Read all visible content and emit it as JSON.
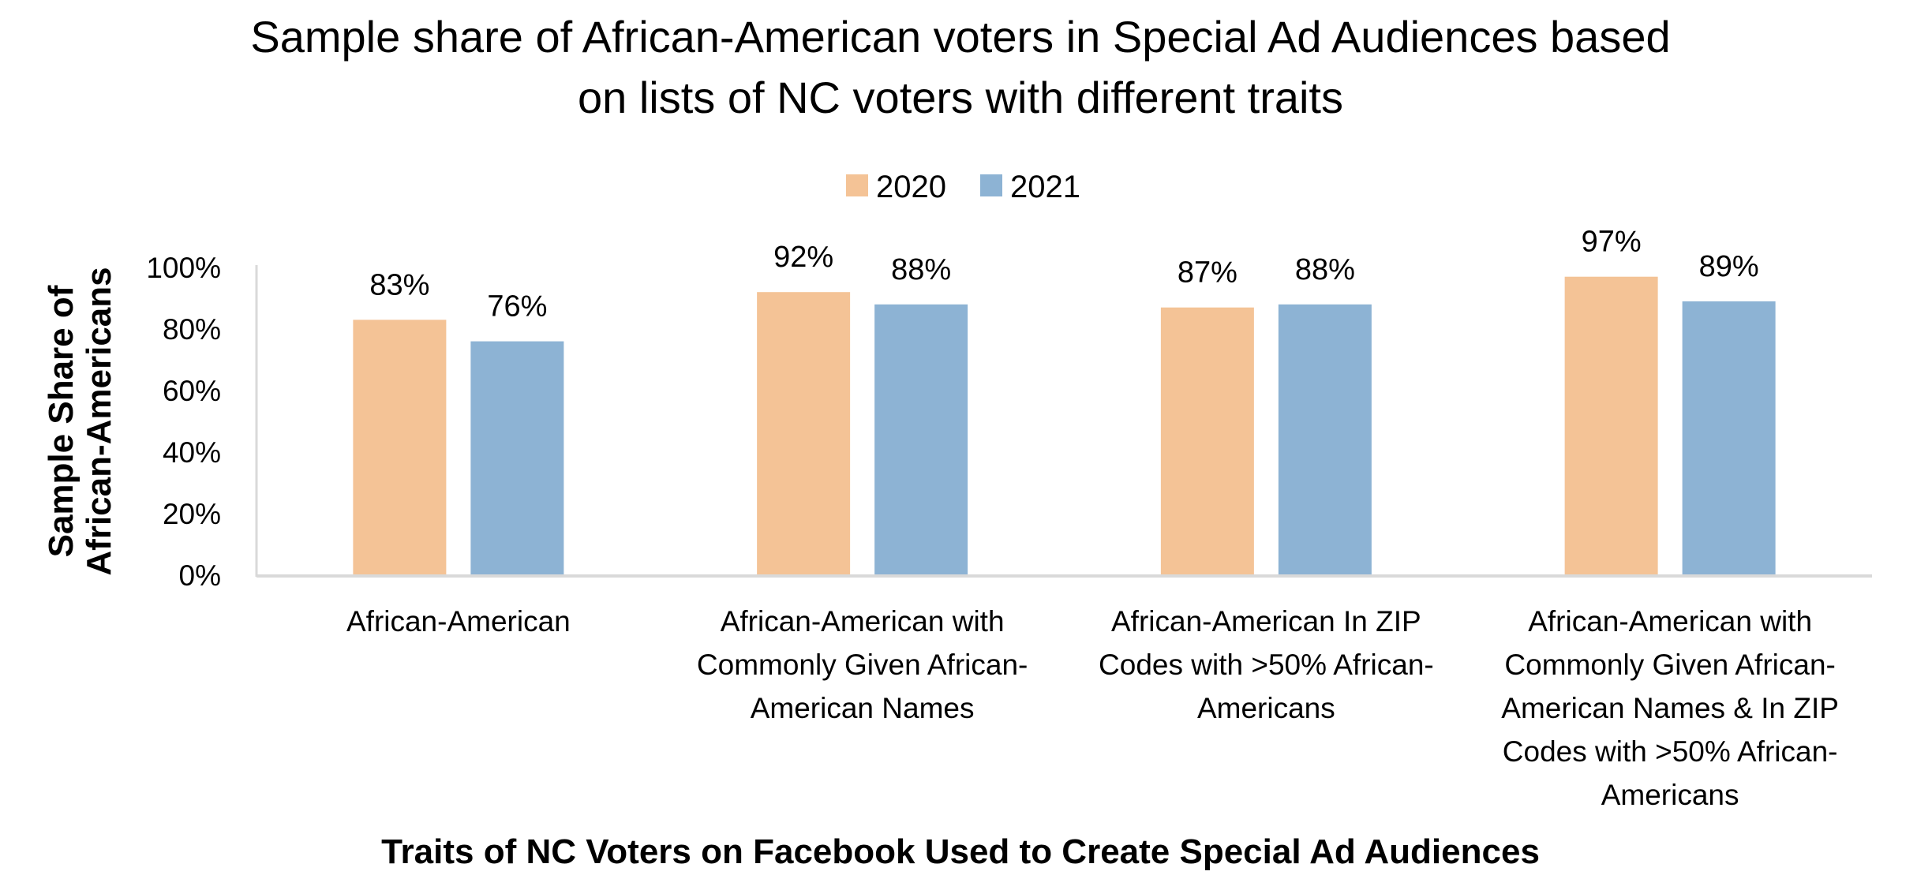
{
  "chart_data": {
    "type": "bar",
    "title": "Sample share of African-American voters in Special Ad Audiences based on lists of NC voters with different traits",
    "title_lines": [
      "Sample share of African-American voters in Special Ad Audiences based",
      "on lists of NC voters with different traits"
    ],
    "xlabel": "Traits of NC Voters on Facebook Used to Create Special Ad Audiences",
    "ylabel": "Sample Share of African-Americans",
    "ylabel_lines": [
      "Sample Share of",
      "African-Americans"
    ],
    "ylim": [
      0,
      100
    ],
    "yticks": [
      "0%",
      "20%",
      "40%",
      "60%",
      "80%",
      "100%"
    ],
    "grid": false,
    "legend_position": "top",
    "categories": [
      "African-American",
      "African-American with Commonly Given African-American Names",
      "African-American In ZIP Codes with >50% African-Americans",
      "African-American with Commonly Given African-American Names & In ZIP Codes with >50% African-Americans"
    ],
    "category_lines": [
      [
        "African-American"
      ],
      [
        "African-American with",
        "Commonly Given African-",
        "American Names"
      ],
      [
        "African-American In ZIP",
        "Codes with >50% African-",
        "Americans"
      ],
      [
        "African-American with",
        "Commonly Given African-",
        "American Names & In ZIP",
        "Codes with >50% African-",
        "Americans"
      ]
    ],
    "series": [
      {
        "name": "2020",
        "color": "#F4C396",
        "values": [
          83,
          92,
          87,
          97
        ],
        "labels": [
          "83%",
          "92%",
          "87%",
          "97%"
        ]
      },
      {
        "name": "2021",
        "color": "#8DB3D4",
        "values": [
          76,
          88,
          88,
          89
        ],
        "labels": [
          "76%",
          "88%",
          "88%",
          "89%"
        ]
      }
    ]
  }
}
